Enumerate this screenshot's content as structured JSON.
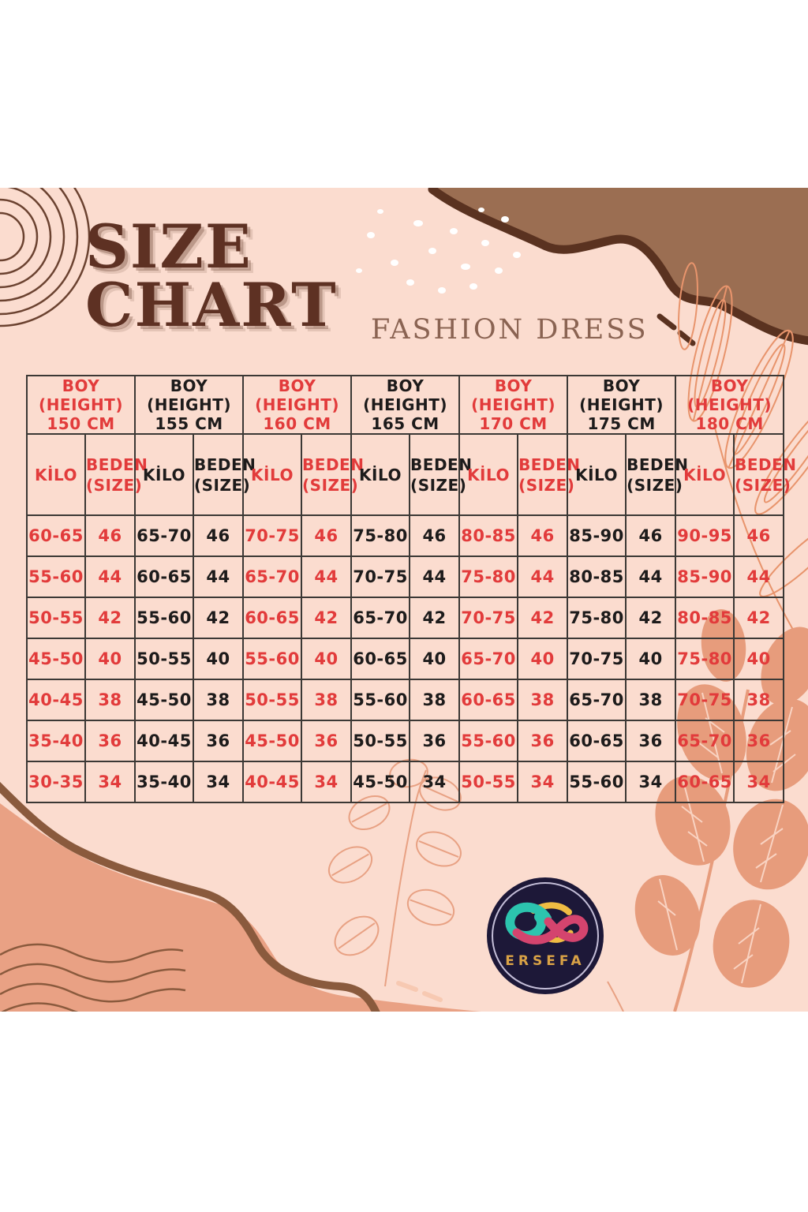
{
  "page": {
    "title_line1": "SIZE",
    "title_line2": "CHART",
    "subtitle": "FASHION DRESS"
  },
  "logo": {
    "brand": "ERSEFA"
  },
  "colors": {
    "background_pink": "#fbdccf",
    "accent_red": "#e23b3b",
    "text_black": "#1d1b1b",
    "title_brown": "#5e3123",
    "subtitle_brown": "#8a6352",
    "blob_brown": "#9b6e52",
    "stroke_dark_brown": "#5a3220",
    "blob_salmon": "#e9a184",
    "leaf_salmon": "#e79c7c",
    "logo_navy": "#1d1838",
    "logo_gold": "#d9a246"
  },
  "chart_data": {
    "type": "table",
    "title": "SIZE CHART",
    "subtitle": "FASHION DRESS",
    "header": {
      "boy_lines": [
        "BOY",
        "(HEIGHT)"
      ],
      "kilo": "KİLO",
      "beden_lines": [
        "BEDEN",
        "(SIZE)"
      ]
    },
    "sizes": [
      "46",
      "44",
      "42",
      "40",
      "38",
      "36",
      "34"
    ],
    "groups": [
      {
        "height": "150 CM",
        "accent": "red",
        "weights": [
          "60-65",
          "55-60",
          "50-55",
          "45-50",
          "40-45",
          "35-40",
          "30-35"
        ]
      },
      {
        "height": "155 CM",
        "accent": "black",
        "weights": [
          "65-70",
          "60-65",
          "55-60",
          "50-55",
          "45-50",
          "40-45",
          "35-40"
        ]
      },
      {
        "height": "160 CM",
        "accent": "red",
        "weights": [
          "70-75",
          "65-70",
          "60-65",
          "55-60",
          "50-55",
          "45-50",
          "40-45"
        ]
      },
      {
        "height": "165 CM",
        "accent": "black",
        "weights": [
          "75-80",
          "70-75",
          "65-70",
          "60-65",
          "55-60",
          "50-55",
          "45-50"
        ]
      },
      {
        "height": "170 CM",
        "accent": "red",
        "weights": [
          "80-85",
          "75-80",
          "70-75",
          "65-70",
          "60-65",
          "55-60",
          "50-55"
        ]
      },
      {
        "height": "175 CM",
        "accent": "black",
        "weights": [
          "85-90",
          "80-85",
          "75-80",
          "70-75",
          "65-70",
          "60-65",
          "55-60"
        ]
      },
      {
        "height": "180 CM",
        "accent": "red",
        "weights": [
          "90-95",
          "85-90",
          "80-85",
          "75-80",
          "70-75",
          "65-70",
          "60-65"
        ]
      }
    ]
  }
}
